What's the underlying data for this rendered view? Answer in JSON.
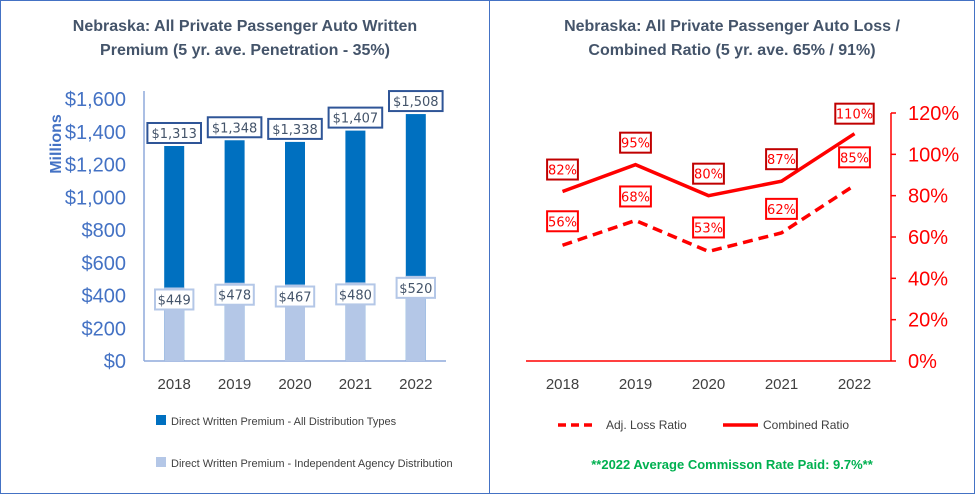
{
  "chart_data": [
    {
      "type": "bar",
      "title_line1": "Nebraska: All Private Passenger Auto Written",
      "title_line2": "Premium (5 yr. ave. Penetration - 35%)",
      "ylabel": "Millions",
      "categories": [
        "2018",
        "2019",
        "2020",
        "2021",
        "2022"
      ],
      "ylim": [
        0,
        1600
      ],
      "yticks": [
        "$0",
        "$200",
        "$400",
        "$600",
        "$800",
        "$1,000",
        "$1,200",
        "$1,400",
        "$1,600"
      ],
      "series": [
        {
          "name": "Direct Written Premium - All Distribution Types",
          "values": [
            1313,
            1348,
            1338,
            1407,
            1508
          ],
          "labels": [
            "$1,313",
            "$1,348",
            "$1,338",
            "$1,407",
            "$1,508"
          ],
          "color": "#0070c0"
        },
        {
          "name": "Direct Written Premium - Independent Agency Distribution",
          "values": [
            449,
            478,
            467,
            480,
            520
          ],
          "labels": [
            "$449",
            "$478",
            "$467",
            "$480",
            "$520"
          ],
          "color": "#b4c7e7"
        }
      ],
      "axis_color": "#4472c4",
      "grid": false,
      "legend": "bottom"
    },
    {
      "type": "line",
      "title_line1": "Nebraska: All Private Passenger Auto Loss /",
      "title_line2": "Combined Ratio (5 yr. ave.  65% / 91%)",
      "categories": [
        "2018",
        "2019",
        "2020",
        "2021",
        "2022"
      ],
      "ylim": [
        0,
        120
      ],
      "yaxis_side": "right",
      "yticks": [
        "0%",
        "20%",
        "40%",
        "60%",
        "80%",
        "100%",
        "120%"
      ],
      "series": [
        {
          "name": "Adj. Loss Ratio",
          "values": [
            56,
            68,
            53,
            62,
            85
          ],
          "labels": [
            "56%",
            "68%",
            "53%",
            "62%",
            "85%"
          ],
          "style": "dashed",
          "color": "#ff0000"
        },
        {
          "name": "Combined Ratio",
          "values": [
            82,
            95,
            80,
            87,
            110
          ],
          "labels": [
            "82%",
            "95%",
            "80%",
            "87%",
            "110%"
          ],
          "style": "solid",
          "color": "#ff0000"
        }
      ],
      "grid": false,
      "legend": "bottom",
      "footnote": "**2022 Average Commisson Rate Paid: 9.7%**",
      "footnote_color": "#00b050"
    }
  ]
}
